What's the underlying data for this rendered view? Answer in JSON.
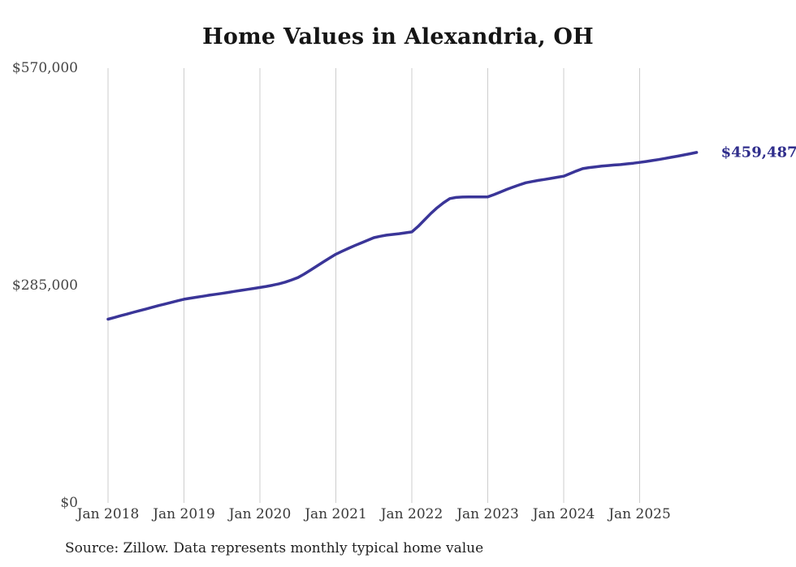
{
  "title": "Home Values in Alexandria, OH",
  "end_label": "$459,487",
  "source_note": "Source: Zillow. Data represents monthly typical home value",
  "colors": {
    "line": "#3a3598",
    "end_label": "#302e8c",
    "gridline": "#cdcdcd",
    "title_text": "#151515",
    "axis_text": "#454545",
    "source_text": "#1f1f1f",
    "background": "#ffffff"
  },
  "chart_data": {
    "type": "line",
    "title": "Home Values in Alexandria, OH",
    "grid": "vertical-only",
    "legend": "none",
    "ylim": [
      0,
      570000
    ],
    "y_ticks": [
      {
        "value": 570000,
        "label": "$570,000"
      },
      {
        "value": 285000,
        "label": "$285,000"
      },
      {
        "value": 0,
        "label": "$0"
      }
    ],
    "x_ticks": [
      {
        "month_index": 0,
        "label": "Jan 2018"
      },
      {
        "month_index": 12,
        "label": "Jan 2019"
      },
      {
        "month_index": 24,
        "label": "Jan 2020"
      },
      {
        "month_index": 36,
        "label": "Jan 2021"
      },
      {
        "month_index": 48,
        "label": "Jan 2022"
      },
      {
        "month_index": 60,
        "label": "Jan 2023"
      },
      {
        "month_index": 72,
        "label": "Jan 2024"
      },
      {
        "month_index": 84,
        "label": "Jan 2025"
      }
    ],
    "cadence": "monthly",
    "series": [
      {
        "name": "Typical home value",
        "start": "Jan 2018",
        "values": [
          240900,
          243100,
          245400,
          247600,
          249900,
          252100,
          254300,
          256500,
          258700,
          260800,
          262900,
          265000,
          267000,
          268400,
          269700,
          271000,
          272300,
          273500,
          274700,
          276000,
          277300,
          278600,
          279900,
          281200,
          282400,
          283800,
          285400,
          287200,
          289500,
          292300,
          295400,
          300000,
          305200,
          310500,
          315800,
          321000,
          326000,
          330000,
          333800,
          337400,
          340800,
          344200,
          347750,
          349600,
          351000,
          352000,
          353000,
          354100,
          355300,
          362500,
          371000,
          379400,
          387000,
          393500,
          399000,
          400500,
          401000,
          401200,
          401200,
          401200,
          401200,
          404200,
          407600,
          411000,
          414100,
          417000,
          419700,
          421300,
          422800,
          424100,
          425500,
          427000,
          428400,
          431800,
          435200,
          438200,
          439600,
          440600,
          441500,
          442300,
          443000,
          443600,
          444500,
          445400,
          446400,
          447600,
          448900,
          450200,
          451600,
          453100,
          454600,
          456200,
          457800,
          459487
        ]
      }
    ],
    "last_value": 459487,
    "last_value_label": "$459,487"
  }
}
